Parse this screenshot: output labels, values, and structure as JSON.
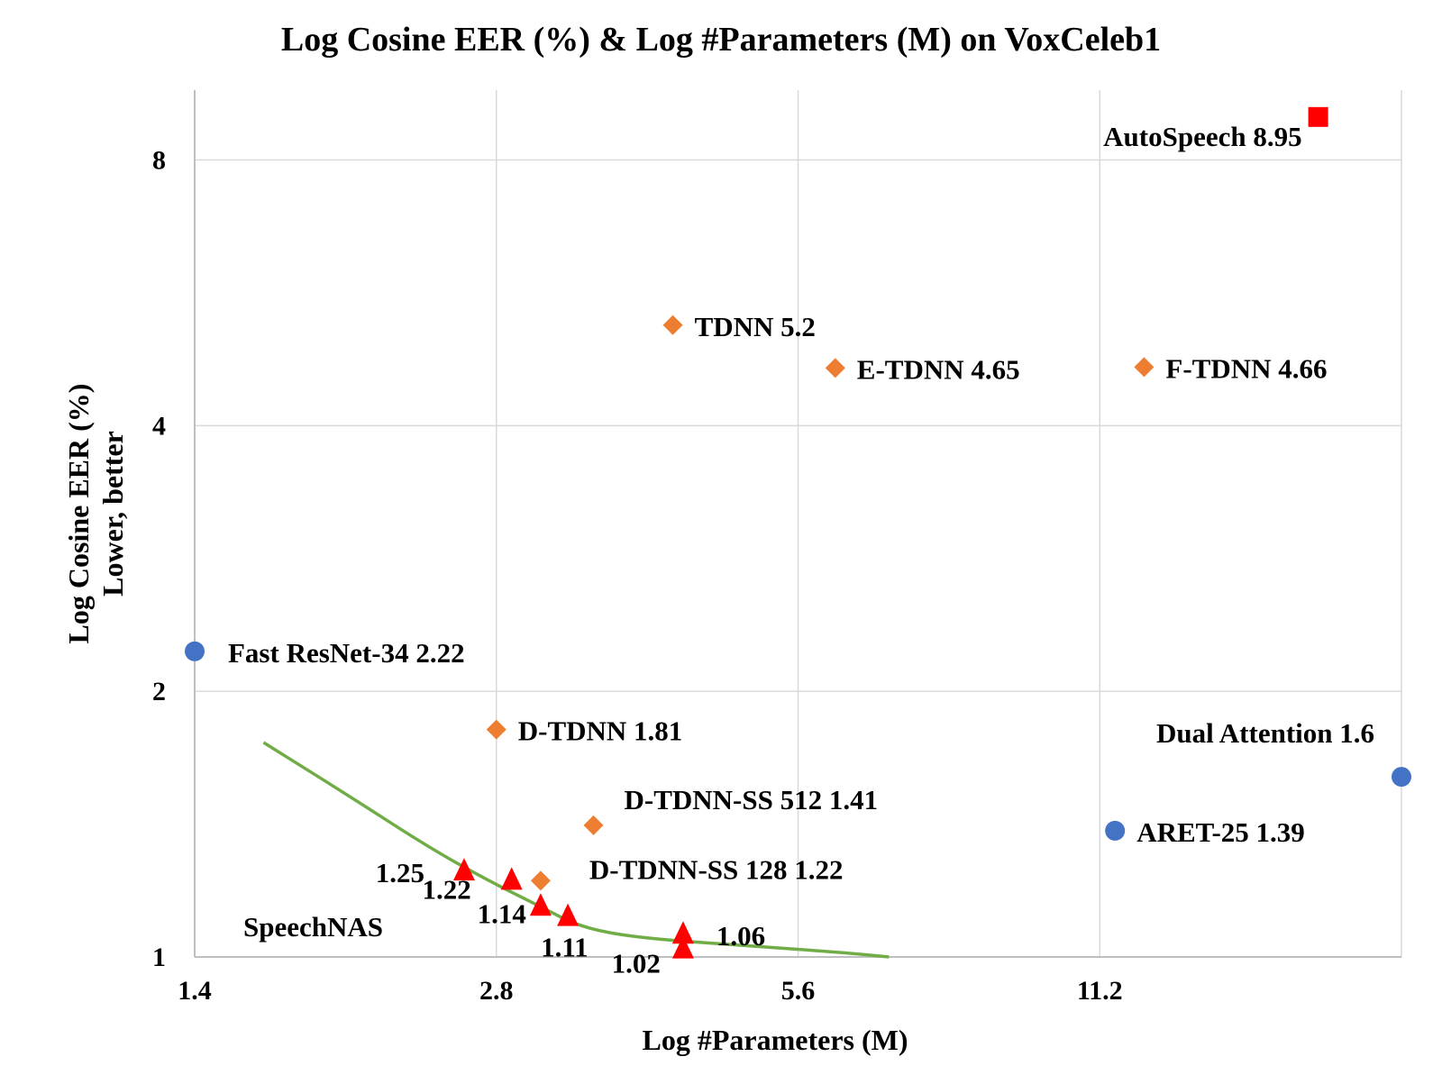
{
  "chart_data": {
    "type": "scatter",
    "title": "Log Cosine EER (%) & Log #Parameters (M) on VoxCeleb1",
    "xlabel": "Log #Parameters (M)",
    "ylabel": "Log Cosine EER (%)",
    "ylabel2": "Lower, better",
    "xscale": "log",
    "yscale": "log",
    "xlim": [
      1.4,
      22.4
    ],
    "ylim": [
      1,
      9.6
    ],
    "xticks": [
      "1.4",
      "2.8",
      "5.6",
      "11.2"
    ],
    "yticks": [
      "1",
      "2",
      "4",
      "8"
    ],
    "grid": true,
    "colors": {
      "blue": "#4472c4",
      "orange": "#ed7d31",
      "red": "#ff0000",
      "green": "#70ad47"
    },
    "series": [
      {
        "marker": "circle",
        "color": "#4472c4",
        "points": [
          {
            "x": 1.4,
            "y": 2.22,
            "label": "Fast ResNet-34 2.22"
          },
          {
            "x": 22.4,
            "y": 1.6,
            "label": "Dual Attention 1.6"
          },
          {
            "x": 11.6,
            "y": 1.39,
            "label": "ARET-25 1.39"
          }
        ]
      },
      {
        "marker": "diamond",
        "color": "#ed7d31",
        "points": [
          {
            "x": 4.2,
            "y": 5.2,
            "label": "TDNN 5.2"
          },
          {
            "x": 6.1,
            "y": 4.65,
            "label": "E-TDNN 4.65"
          },
          {
            "x": 12.4,
            "y": 4.66,
            "label": "F-TDNN 4.66"
          },
          {
            "x": 2.8,
            "y": 1.81,
            "label": "D-TDNN 1.81"
          },
          {
            "x": 3.5,
            "y": 1.41,
            "label": "D-TDNN-SS 512 1.41"
          },
          {
            "x": 3.1,
            "y": 1.22,
            "label": "D-TDNN-SS 128 1.22"
          }
        ]
      },
      {
        "marker": "square",
        "color": "#ff0000",
        "points": [
          {
            "x": 18.5,
            "y": 8.95,
            "label": "AutoSpeech 8.95"
          }
        ]
      },
      {
        "name": "SpeechNAS",
        "marker": "triangle",
        "color": "#ff0000",
        "points": [
          {
            "x": 2.6,
            "y": 1.25,
            "label": "1.25"
          },
          {
            "x": 2.9,
            "y": 1.22,
            "label": "1.22"
          },
          {
            "x": 3.1,
            "y": 1.14,
            "label": "1.14"
          },
          {
            "x": 3.3,
            "y": 1.11,
            "label": "1.11"
          },
          {
            "x": 4.3,
            "y": 1.06,
            "label": "1.06"
          },
          {
            "x": 4.3,
            "y": 1.02,
            "label": "1.02"
          }
        ]
      }
    ],
    "curve": {
      "color": "#70ad47",
      "points": [
        [
          1.64,
          1.75
        ],
        [
          2.0,
          1.52
        ],
        [
          2.4,
          1.33
        ],
        [
          2.75,
          1.22
        ],
        [
          3.1,
          1.14
        ],
        [
          3.4,
          1.08
        ],
        [
          3.9,
          1.05
        ],
        [
          5.0,
          1.03
        ],
        [
          6.3,
          1.01
        ],
        [
          6.9,
          1.0
        ]
      ]
    }
  }
}
